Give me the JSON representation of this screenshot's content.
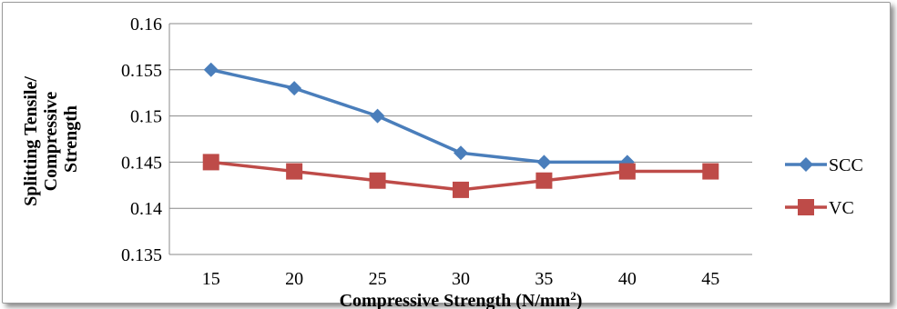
{
  "chart_data": {
    "type": "line",
    "categories": [
      "15",
      "20",
      "25",
      "30",
      "35",
      "40",
      "45"
    ],
    "series": [
      {
        "name": "SCC",
        "color": "#4a7ebb",
        "marker": "diamond",
        "values": [
          0.155,
          0.153,
          0.15,
          0.146,
          0.145,
          0.145,
          null
        ]
      },
      {
        "name": "VC",
        "color": "#be4b48",
        "marker": "square",
        "values": [
          0.145,
          0.144,
          0.143,
          0.142,
          0.143,
          0.144,
          0.144
        ]
      }
    ],
    "xlabel": "Compressive Strength (N/mm",
    "xlabel_sup": "2",
    "xlabel_end": ")",
    "ylabel_lines": [
      "Splitting Tensile/",
      "Compressive",
      "Strength"
    ],
    "ylim": [
      0.135,
      0.16
    ],
    "yticks": [
      "0.135",
      "0.14",
      "0.145",
      "0.15",
      "0.155",
      "0.16"
    ],
    "grid": true,
    "legend_position": "right"
  }
}
